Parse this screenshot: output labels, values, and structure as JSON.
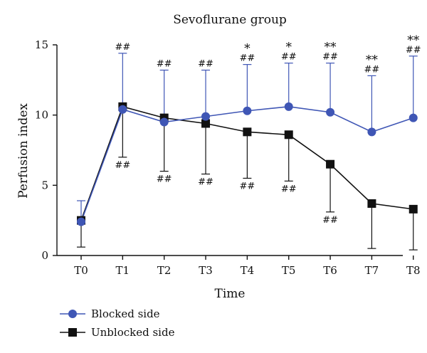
{
  "chart_data": {
    "type": "line",
    "title": "Sevoflurane group",
    "xlabel": "Time",
    "ylabel": "Perfusion index",
    "categories": [
      "T0",
      "T1",
      "T2",
      "T3",
      "T4",
      "T5",
      "T6",
      "T7",
      "T8"
    ],
    "ylim": [
      0,
      15
    ],
    "yticks": [
      0,
      5,
      10,
      15
    ],
    "grid": false,
    "legend_position": "bottom-left",
    "series": [
      {
        "name": "Blocked side",
        "marker": "circle",
        "color": "#3f56b5",
        "values": [
          2.4,
          10.4,
          9.5,
          9.9,
          10.3,
          10.6,
          10.2,
          8.8,
          9.8
        ],
        "error_upper": [
          3.9,
          14.4,
          13.2,
          13.2,
          13.6,
          13.7,
          13.7,
          12.8,
          14.2
        ],
        "error_lower": [
          null,
          null,
          null,
          null,
          null,
          null,
          null,
          null,
          null
        ]
      },
      {
        "name": "Unblocked side",
        "marker": "square",
        "color": "#111111",
        "values": [
          2.5,
          10.6,
          9.8,
          9.4,
          8.8,
          8.6,
          6.5,
          3.7,
          3.3
        ],
        "error_upper": [
          null,
          null,
          null,
          null,
          null,
          null,
          null,
          null,
          null
        ],
        "error_lower": [
          0.6,
          7.0,
          6.0,
          5.8,
          5.5,
          5.3,
          3.1,
          0.5,
          0.4
        ]
      }
    ],
    "annotations_upper_hash": [
      "",
      "##",
      "##",
      "##",
      "##",
      "##",
      "##",
      "##",
      "##"
    ],
    "annotations_upper_star": [
      "",
      "",
      "",
      "",
      "*",
      "*",
      "**",
      "**",
      "**"
    ],
    "annotations_lower_hash": [
      "",
      "##",
      "##",
      "##",
      "##",
      "##",
      "##",
      "",
      ""
    ]
  }
}
